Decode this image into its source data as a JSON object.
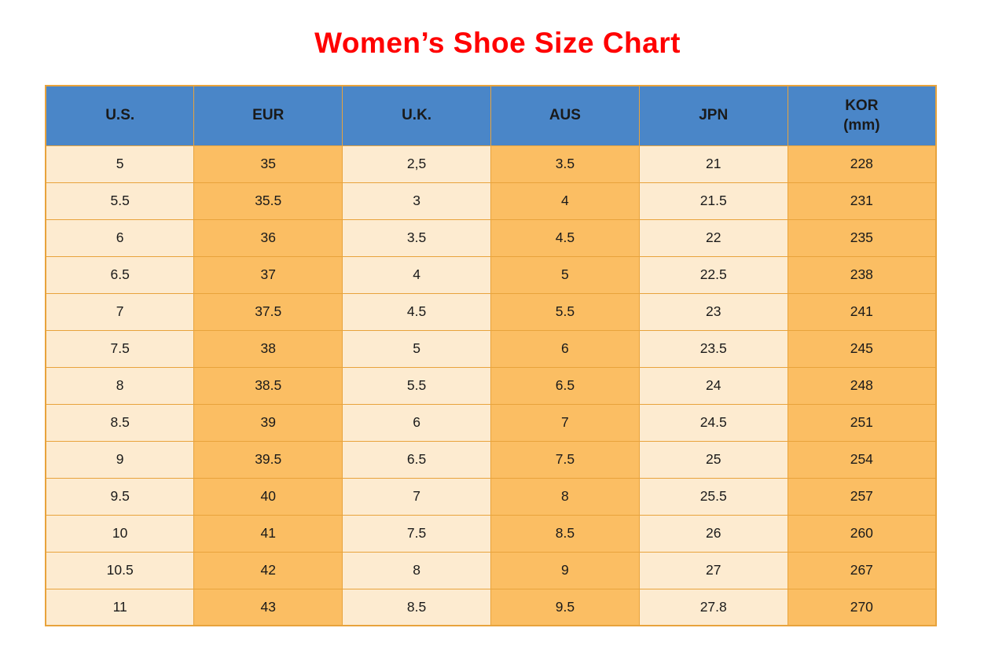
{
  "title": "Women’s Shoe Size Chart",
  "colors": {
    "title_red": "#FF0000",
    "header_blue": "#4A86C8",
    "cream": "#FDEBD0",
    "orange": "#FBBE63",
    "border": "#E8A33C",
    "text": "#1A1A1A"
  },
  "chart_data": {
    "type": "table",
    "title": "Women’s Shoe Size Chart",
    "columns": [
      {
        "label": "U.S.",
        "shade": "cream"
      },
      {
        "label": "EUR",
        "shade": "orange"
      },
      {
        "label": "U.K.",
        "shade": "cream"
      },
      {
        "label": "AUS",
        "shade": "orange"
      },
      {
        "label": "JPN",
        "shade": "cream"
      },
      {
        "label": "KOR\n(mm)",
        "shade": "orange"
      }
    ],
    "rows": [
      [
        "5",
        "35",
        "2,5",
        "3.5",
        "21",
        "228"
      ],
      [
        "5.5",
        "35.5",
        "3",
        "4",
        "21.5",
        "231"
      ],
      [
        "6",
        "36",
        "3.5",
        "4.5",
        "22",
        "235"
      ],
      [
        "6.5",
        "37",
        "4",
        "5",
        "22.5",
        "238"
      ],
      [
        "7",
        "37.5",
        "4.5",
        "5.5",
        "23",
        "241"
      ],
      [
        "7.5",
        "38",
        "5",
        "6",
        "23.5",
        "245"
      ],
      [
        "8",
        "38.5",
        "5.5",
        "6.5",
        "24",
        "248"
      ],
      [
        "8.5",
        "39",
        "6",
        "7",
        "24.5",
        "251"
      ],
      [
        "9",
        "39.5",
        "6.5",
        "7.5",
        "25",
        "254"
      ],
      [
        "9.5",
        "40",
        "7",
        "8",
        "25.5",
        "257"
      ],
      [
        "10",
        "41",
        "7.5",
        "8.5",
        "26",
        "260"
      ],
      [
        "10.5",
        "42",
        "8",
        "9",
        "27",
        "267"
      ],
      [
        "11",
        "43",
        "8.5",
        "9.5",
        "27.8",
        "270"
      ]
    ]
  }
}
